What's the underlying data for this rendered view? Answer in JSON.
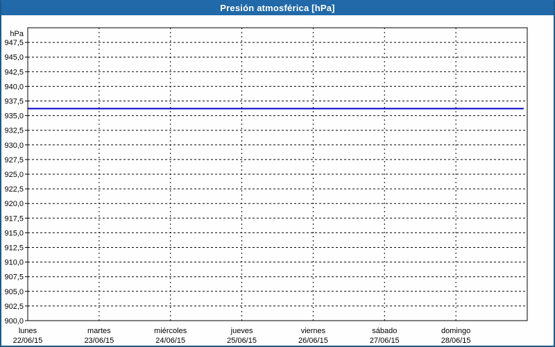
{
  "window": {
    "title_bar_text": "Presión atmosférica [hPa]",
    "title_bar_bg": "#2169A8",
    "title_bar_text_color": "#FFFFFF",
    "outer_border_color": "#1B5A8A",
    "background_color": "#FDFEFD"
  },
  "chart_data": {
    "type": "line",
    "title": "Presión atmosférica [hPa]",
    "unit_label": "hPa",
    "ylim": [
      900,
      950
    ],
    "ytick_step": 2.5,
    "yticks": [
      {
        "value": 947.5,
        "label": "947,5"
      },
      {
        "value": 945.0,
        "label": "945,0"
      },
      {
        "value": 942.5,
        "label": "942,5"
      },
      {
        "value": 940.0,
        "label": "940,0"
      },
      {
        "value": 937.5,
        "label": "937,5"
      },
      {
        "value": 935.0,
        "label": "935,0"
      },
      {
        "value": 932.5,
        "label": "932,5"
      },
      {
        "value": 930.0,
        "label": "930,0"
      },
      {
        "value": 927.5,
        "label": "927,5"
      },
      {
        "value": 925.0,
        "label": "925,0"
      },
      {
        "value": 922.5,
        "label": "922,5"
      },
      {
        "value": 920.0,
        "label": "920,0"
      },
      {
        "value": 917.5,
        "label": "917,5"
      },
      {
        "value": 915.0,
        "label": "915,0"
      },
      {
        "value": 912.5,
        "label": "912,5"
      },
      {
        "value": 910.0,
        "label": "910,0"
      },
      {
        "value": 907.5,
        "label": "907,5"
      },
      {
        "value": 905.0,
        "label": "905,0"
      },
      {
        "value": 902.5,
        "label": "902,5"
      },
      {
        "value": 900.0,
        "label": "900,0"
      }
    ],
    "x_categories": [
      {
        "day": "lunes",
        "date": "22/06/15"
      },
      {
        "day": "martes",
        "date": "23/06/15"
      },
      {
        "day": "miércoles",
        "date": "24/06/15"
      },
      {
        "day": "jueves",
        "date": "25/06/15"
      },
      {
        "day": "viernes",
        "date": "26/06/15"
      },
      {
        "day": "sábado",
        "date": "27/06/15"
      },
      {
        "day": "domingo",
        "date": "28/06/15"
      }
    ],
    "x_total_days": 7,
    "grid": {
      "h_style": "dashed",
      "v_style": "dashed",
      "color": "#000000"
    },
    "axis_color": "#000000",
    "legend": "none",
    "series": [
      {
        "name": "presión atmosférica",
        "color": "#0000C8",
        "stroke_width": 2,
        "points": [
          {
            "x_days": 0.0,
            "hPa": 936.2
          },
          {
            "x_days": 6.95,
            "hPa": 936.2
          }
        ]
      }
    ]
  }
}
